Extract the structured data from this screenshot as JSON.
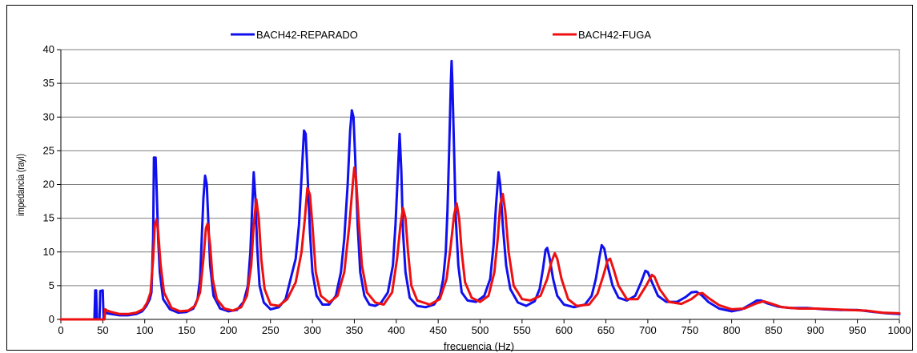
{
  "chart_data": {
    "type": "line",
    "title": "",
    "xlabel": "frecuencia (Hz)",
    "ylabel": "impedancia (rayl)",
    "xlim": [
      0,
      1000
    ],
    "ylim": [
      0,
      40
    ],
    "xticks": [
      "0",
      "50",
      "100",
      "150",
      "200",
      "250",
      "300",
      "350",
      "400",
      "450",
      "500",
      "550",
      "600",
      "650",
      "700",
      "750",
      "800",
      "850",
      "900",
      "950",
      "1000"
    ],
    "yticks": [
      "0",
      "5",
      "10",
      "15",
      "20",
      "25",
      "30",
      "35",
      "40"
    ],
    "grid": "horizontal",
    "legend_position": "top",
    "series": [
      {
        "name": "BACH42-REPARADO",
        "color": "#1010ee",
        "points": [
          [
            0,
            0
          ],
          [
            40,
            0
          ],
          [
            41,
            4.3
          ],
          [
            42,
            4.3
          ],
          [
            43,
            0
          ],
          [
            46,
            0
          ],
          [
            47,
            4.2
          ],
          [
            50,
            4.3
          ],
          [
            51,
            0
          ],
          [
            52,
            1.2
          ],
          [
            55,
            0.9
          ],
          [
            60,
            0.8
          ],
          [
            70,
            0.6
          ],
          [
            80,
            0.6
          ],
          [
            90,
            0.8
          ],
          [
            97,
            1.2
          ],
          [
            102,
            2
          ],
          [
            106,
            3
          ],
          [
            108,
            4
          ],
          [
            110,
            12
          ],
          [
            111,
            24
          ],
          [
            112,
            23.5
          ],
          [
            113,
            24
          ],
          [
            114,
            20
          ],
          [
            116,
            12
          ],
          [
            118,
            7
          ],
          [
            122,
            3
          ],
          [
            130,
            1.5
          ],
          [
            140,
            1
          ],
          [
            150,
            1.1
          ],
          [
            158,
            1.6
          ],
          [
            163,
            3
          ],
          [
            166,
            6
          ],
          [
            168,
            12
          ],
          [
            170,
            18
          ],
          [
            172,
            21.3
          ],
          [
            174,
            20
          ],
          [
            176,
            14
          ],
          [
            178,
            8
          ],
          [
            182,
            3.5
          ],
          [
            190,
            1.6
          ],
          [
            200,
            1.2
          ],
          [
            210,
            1.4
          ],
          [
            218,
            2.6
          ],
          [
            223,
            5
          ],
          [
            226,
            10
          ],
          [
            228,
            16
          ],
          [
            230,
            21.8
          ],
          [
            232,
            18
          ],
          [
            234,
            11
          ],
          [
            237,
            5
          ],
          [
            242,
            2.5
          ],
          [
            250,
            1.5
          ],
          [
            260,
            1.8
          ],
          [
            268,
            3
          ],
          [
            274,
            6
          ],
          [
            280,
            9
          ],
          [
            284,
            14
          ],
          [
            287,
            21
          ],
          [
            290,
            28
          ],
          [
            292,
            27.5
          ],
          [
            294,
            22
          ],
          [
            297,
            13
          ],
          [
            300,
            7
          ],
          [
            305,
            3.5
          ],
          [
            312,
            2.2
          ],
          [
            320,
            2.2
          ],
          [
            328,
            3.5
          ],
          [
            334,
            7
          ],
          [
            338,
            12
          ],
          [
            342,
            20
          ],
          [
            345,
            28
          ],
          [
            347,
            31
          ],
          [
            349,
            30
          ],
          [
            351,
            24
          ],
          [
            354,
            14
          ],
          [
            357,
            7
          ],
          [
            362,
            3.5
          ],
          [
            368,
            2.2
          ],
          [
            375,
            2
          ],
          [
            382,
            2.5
          ],
          [
            390,
            4
          ],
          [
            396,
            8
          ],
          [
            399,
            14
          ],
          [
            402,
            22
          ],
          [
            404,
            27.5
          ],
          [
            406,
            22
          ],
          [
            408,
            13
          ],
          [
            411,
            7
          ],
          [
            416,
            3.2
          ],
          [
            425,
            2
          ],
          [
            435,
            1.8
          ],
          [
            445,
            2.2
          ],
          [
            452,
            3.5
          ],
          [
            456,
            6
          ],
          [
            459,
            10
          ],
          [
            461,
            16
          ],
          [
            463,
            25
          ],
          [
            465,
            35
          ],
          [
            466,
            38.3
          ],
          [
            467,
            35
          ],
          [
            469,
            25
          ],
          [
            471,
            15
          ],
          [
            474,
            8
          ],
          [
            478,
            4
          ],
          [
            485,
            2.8
          ],
          [
            495,
            2.6
          ],
          [
            505,
            3.5
          ],
          [
            512,
            6
          ],
          [
            516,
            11
          ],
          [
            519,
            17
          ],
          [
            522,
            21.8
          ],
          [
            524,
            20
          ],
          [
            527,
            14
          ],
          [
            531,
            8
          ],
          [
            536,
            4.5
          ],
          [
            545,
            2.5
          ],
          [
            555,
            2
          ],
          [
            565,
            2.7
          ],
          [
            571,
            4.5
          ],
          [
            575,
            7.5
          ],
          [
            578,
            10.3
          ],
          [
            580,
            10.6
          ],
          [
            583,
            9
          ],
          [
            587,
            6
          ],
          [
            592,
            3.5
          ],
          [
            600,
            2.2
          ],
          [
            612,
            1.8
          ],
          [
            625,
            2.2
          ],
          [
            633,
            3.5
          ],
          [
            638,
            6
          ],
          [
            642,
            9
          ],
          [
            645,
            11
          ],
          [
            648,
            10.5
          ],
          [
            652,
            8
          ],
          [
            658,
            5
          ],
          [
            665,
            3.2
          ],
          [
            675,
            2.8
          ],
          [
            685,
            3.5
          ],
          [
            692,
            5.5
          ],
          [
            697,
            7.2
          ],
          [
            700,
            7
          ],
          [
            705,
            5.5
          ],
          [
            712,
            3.5
          ],
          [
            722,
            2.6
          ],
          [
            735,
            2.6
          ],
          [
            745,
            3.3
          ],
          [
            752,
            4
          ],
          [
            758,
            4.1
          ],
          [
            764,
            3.6
          ],
          [
            772,
            2.6
          ],
          [
            785,
            1.6
          ],
          [
            800,
            1.2
          ],
          [
            812,
            1.5
          ],
          [
            822,
            2.2
          ],
          [
            830,
            2.8
          ],
          [
            835,
            2.8
          ],
          [
            842,
            2.4
          ],
          [
            855,
            1.9
          ],
          [
            870,
            1.7
          ],
          [
            890,
            1.7
          ],
          [
            910,
            1.5
          ],
          [
            930,
            1.4
          ],
          [
            950,
            1.4
          ],
          [
            970,
            1.1
          ],
          [
            985,
            0.9
          ],
          [
            1000,
            0.8
          ]
        ]
      },
      {
        "name": "BACH42-FUGA",
        "color": "#ee1010",
        "points": [
          [
            0,
            0
          ],
          [
            52,
            0
          ],
          [
            53,
            1.5
          ],
          [
            55,
            1.3
          ],
          [
            60,
            1.1
          ],
          [
            70,
            0.8
          ],
          [
            80,
            0.8
          ],
          [
            90,
            1
          ],
          [
            98,
            1.5
          ],
          [
            103,
            2.5
          ],
          [
            107,
            4
          ],
          [
            110,
            9
          ],
          [
            112,
            14
          ],
          [
            114,
            14.8
          ],
          [
            116,
            13
          ],
          [
            119,
            8
          ],
          [
            123,
            4
          ],
          [
            132,
            1.7
          ],
          [
            142,
            1.2
          ],
          [
            152,
            1.3
          ],
          [
            160,
            2
          ],
          [
            166,
            4
          ],
          [
            170,
            9
          ],
          [
            173,
            13.5
          ],
          [
            175,
            14.2
          ],
          [
            178,
            11
          ],
          [
            181,
            6
          ],
          [
            186,
            3
          ],
          [
            195,
            1.6
          ],
          [
            205,
            1.3
          ],
          [
            215,
            1.8
          ],
          [
            222,
            3.5
          ],
          [
            227,
            8
          ],
          [
            230,
            14
          ],
          [
            233,
            17.8
          ],
          [
            236,
            15
          ],
          [
            239,
            9
          ],
          [
            243,
            4.5
          ],
          [
            250,
            2.2
          ],
          [
            260,
            2
          ],
          [
            270,
            3
          ],
          [
            280,
            5.5
          ],
          [
            287,
            10
          ],
          [
            291,
            15
          ],
          [
            294,
            19.5
          ],
          [
            297,
            18.5
          ],
          [
            300,
            14
          ],
          [
            304,
            7
          ],
          [
            310,
            3.5
          ],
          [
            320,
            2.5
          ],
          [
            330,
            3.5
          ],
          [
            338,
            7
          ],
          [
            344,
            14
          ],
          [
            348,
            20
          ],
          [
            350,
            22.5
          ],
          [
            352,
            21
          ],
          [
            355,
            15
          ],
          [
            359,
            8
          ],
          [
            365,
            4
          ],
          [
            375,
            2.5
          ],
          [
            385,
            2.2
          ],
          [
            395,
            4
          ],
          [
            401,
            9
          ],
          [
            405,
            14
          ],
          [
            408,
            16.5
          ],
          [
            411,
            15
          ],
          [
            414,
            10
          ],
          [
            418,
            5
          ],
          [
            425,
            2.8
          ],
          [
            440,
            2.2
          ],
          [
            452,
            3
          ],
          [
            460,
            6
          ],
          [
            465,
            11
          ],
          [
            469,
            15.5
          ],
          [
            472,
            17.2
          ],
          [
            475,
            15
          ],
          [
            478,
            10
          ],
          [
            482,
            5.5
          ],
          [
            490,
            3.2
          ],
          [
            500,
            2.6
          ],
          [
            510,
            3.5
          ],
          [
            517,
            7
          ],
          [
            521,
            12
          ],
          [
            524,
            17
          ],
          [
            527,
            18.6
          ],
          [
            530,
            16
          ],
          [
            534,
            10
          ],
          [
            540,
            5
          ],
          [
            550,
            3
          ],
          [
            560,
            2.8
          ],
          [
            572,
            3.5
          ],
          [
            580,
            6
          ],
          [
            585,
            8.5
          ],
          [
            589,
            9.8
          ],
          [
            592,
            9
          ],
          [
            597,
            6
          ],
          [
            605,
            3
          ],
          [
            615,
            2
          ],
          [
            630,
            2.2
          ],
          [
            640,
            3.8
          ],
          [
            647,
            6.5
          ],
          [
            652,
            8.7
          ],
          [
            655,
            9
          ],
          [
            659,
            7.5
          ],
          [
            665,
            5
          ],
          [
            675,
            3
          ],
          [
            688,
            3
          ],
          [
            698,
            5
          ],
          [
            705,
            6.6
          ],
          [
            708,
            6.3
          ],
          [
            714,
            4.5
          ],
          [
            725,
            2.6
          ],
          [
            740,
            2.3
          ],
          [
            752,
            3
          ],
          [
            760,
            3.8
          ],
          [
            765,
            3.9
          ],
          [
            772,
            3.2
          ],
          [
            785,
            2.1
          ],
          [
            800,
            1.5
          ],
          [
            815,
            1.6
          ],
          [
            828,
            2.3
          ],
          [
            838,
            2.7
          ],
          [
            848,
            2.3
          ],
          [
            860,
            1.8
          ],
          [
            880,
            1.6
          ],
          [
            900,
            1.6
          ],
          [
            920,
            1.5
          ],
          [
            940,
            1.4
          ],
          [
            960,
            1.3
          ],
          [
            980,
            1.0
          ],
          [
            1000,
            0.9
          ]
        ]
      }
    ]
  }
}
